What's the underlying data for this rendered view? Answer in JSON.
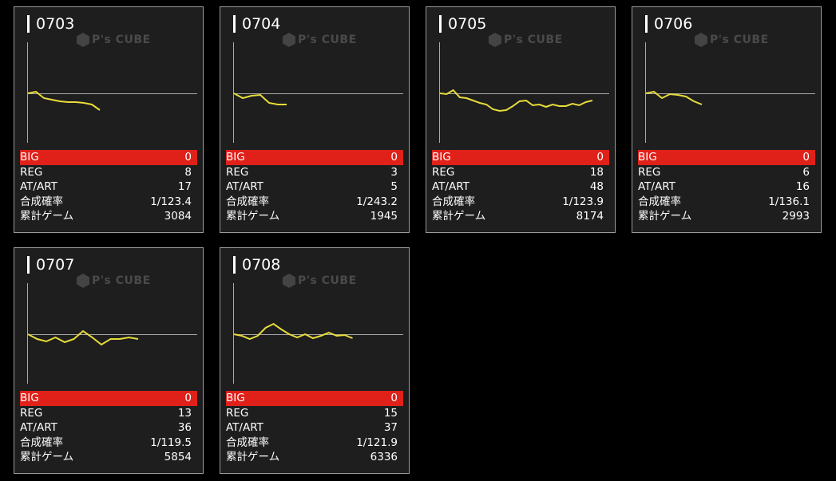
{
  "watermark": "P's CUBE",
  "colors": {
    "big_bar": "#e0211a",
    "line": "#e8dc3a",
    "panel": "#1e1e1e"
  },
  "labels": {
    "big": "BIG",
    "reg": "REG",
    "at": "AT/ART",
    "prob": "合成確率",
    "games": "累計ゲーム"
  },
  "machines": [
    {
      "id": "0703",
      "big": "0",
      "reg": "8",
      "at": "17",
      "prob": "1/123.4",
      "games": "3084",
      "trend": [
        0,
        2,
        -6,
        -8,
        -10,
        -11,
        -11,
        -12,
        -14,
        -21
      ]
    },
    {
      "id": "0704",
      "big": "0",
      "reg": "3",
      "at": "5",
      "prob": "1/243.2",
      "games": "1945",
      "trend": [
        0,
        -6,
        -3,
        -2,
        -12,
        -14,
        -14
      ]
    },
    {
      "id": "0705",
      "big": "0",
      "reg": "18",
      "at": "48",
      "prob": "1/123.9",
      "games": "8174",
      "trend": [
        0,
        -1,
        4,
        -5,
        -6,
        -9,
        -12,
        -14,
        -20,
        -22,
        -21,
        -16,
        -10,
        -9,
        -15,
        -14,
        -17,
        -14,
        -16,
        -16,
        -13,
        -15,
        -11,
        -9
      ]
    },
    {
      "id": "0706",
      "big": "0",
      "reg": "6",
      "at": "16",
      "prob": "1/136.1",
      "games": "2993",
      "trend": [
        0,
        2,
        -6,
        -1,
        -2,
        -4,
        -10,
        -14
      ]
    },
    {
      "id": "0707",
      "big": "0",
      "reg": "13",
      "at": "36",
      "prob": "1/119.5",
      "games": "5854",
      "trend": [
        0,
        -6,
        -9,
        -4,
        -10,
        -6,
        4,
        -4,
        -13,
        -6,
        -6,
        -4,
        -6
      ]
    },
    {
      "id": "0708",
      "big": "0",
      "reg": "15",
      "at": "37",
      "prob": "1/121.9",
      "games": "6336",
      "trend": [
        0,
        -2,
        -6,
        -2,
        8,
        13,
        6,
        0,
        -4,
        0,
        -5,
        -2,
        2,
        -2,
        -1,
        -5
      ]
    }
  ]
}
